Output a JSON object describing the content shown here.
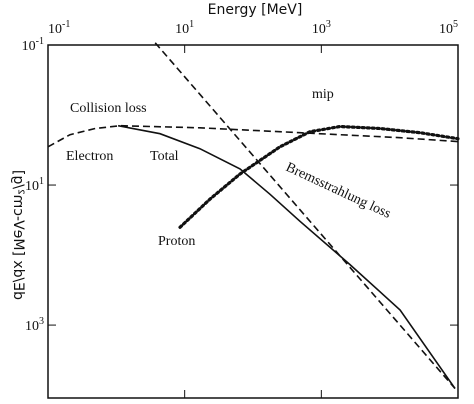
{
  "chart_data": {
    "type": "line",
    "xlabel": "Energy [MeV]",
    "ylabel": "dE/dx [MeV-cm²/g]",
    "xscale": "log",
    "yscale": "log",
    "xlim": [
      0.1,
      100000
    ],
    "ylim": [
      0.1,
      11000
    ],
    "xticks": [
      {
        "value": 0.1,
        "label": "10",
        "exponent": "-1"
      },
      {
        "value": 10,
        "label": "10",
        "exponent": "1"
      },
      {
        "value": 1000,
        "label": "10",
        "exponent": "3"
      },
      {
        "value": 100000,
        "label": "10",
        "exponent": "5"
      }
    ],
    "yticks": [
      {
        "value": 0.1,
        "label": "10",
        "exponent": "-1"
      },
      {
        "value": 10,
        "label": "10",
        "exponent": "1"
      },
      {
        "value": 1000,
        "label": "10",
        "exponent": "3"
      }
    ],
    "flipped": true,
    "series": [
      {
        "color": "#111",
        "style": "dashed",
        "x": [
          0.1,
          0.21,
          0.49,
          1.13,
          16.7,
          488,
          14200,
          100000
        ],
        "values": [
          2.84,
          1.91,
          1.56,
          1.42,
          1.52,
          1.79,
          2.11,
          2.4
        ]
      },
      {
        "color": "#111",
        "style": "solid",
        "x": [
          1.06,
          4.35,
          16.7,
          64.6,
          177,
          488,
          2630,
          14200,
          90400
        ],
        "values": [
          1.42,
          1.85,
          3.03,
          5.89,
          13.5,
          33,
          137,
          608,
          8050
        ]
      },
      {
        "color": "#111",
        "style": "dashed",
        "x": [
          3.7,
          90400
        ],
        "values": [
          0.093,
          8050
        ]
      },
      {
        "color": "#111",
        "style": "dotted",
        "x": [
          8.55,
          23.5,
          64.6,
          248,
          682,
          1875,
          7230,
          27800,
          100000
        ],
        "values": [
          40.2,
          15.9,
          6.95,
          2.84,
          1.73,
          1.46,
          1.56,
          1.79,
          2.18
        ]
      }
    ],
    "annotations": [
      "Collision loss",
      "mip",
      "Electron",
      "Total",
      "Bremsstrahlung loss",
      "Proton"
    ]
  }
}
